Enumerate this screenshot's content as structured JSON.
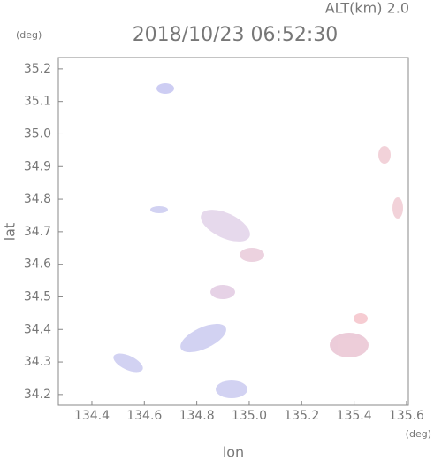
{
  "chart_data": {
    "type": "map",
    "title": "2018/10/23 06:52:30",
    "subtitle": "ALT(km) 2.0",
    "x_label": "lon",
    "y_label": "lat",
    "x_unit": "(deg)",
    "y_unit": "(deg)",
    "xlim": [
      134.272,
      135.607
    ],
    "ylim": [
      34.167,
      35.235
    ],
    "xticks": [
      134.4,
      134.6,
      134.8,
      {
        "value": 135,
        "label": "135.0"
      },
      135.2,
      135.4,
      135.6
    ],
    "yticks": [
      34.2,
      34.3,
      34.4,
      34.5,
      34.6,
      34.7,
      34.8,
      34.9,
      {
        "value": 35,
        "label": "35.0"
      },
      35.1,
      35.2
    ]
  }
}
